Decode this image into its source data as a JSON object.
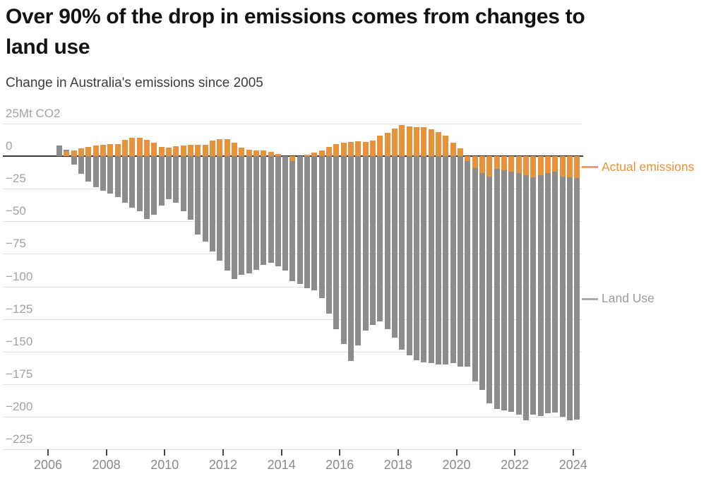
{
  "header": {
    "title_lines": [
      "Over 90% of the drop in emissions comes from changes to",
      "land use"
    ],
    "subtitle": "Change in Australia's emissions since 2005"
  },
  "chart_data": {
    "type": "bar",
    "stacked": true,
    "orientation": "vertical",
    "title": "Over 90% of the drop in emissions comes from changes to land use",
    "subtitle": "Change in Australia's emissions since 2005",
    "unit": "Mt CO2",
    "ylim": [
      -225,
      25
    ],
    "grid": true,
    "legend_position": "right",
    "y_axis": {
      "tick_values": [
        25,
        0,
        -25,
        -50,
        -75,
        -100,
        -125,
        -150,
        -175,
        -200,
        -225
      ],
      "tick_labels": [
        "25Mt CO2",
        "0",
        "−25",
        "−50",
        "−75",
        "−100",
        "−125",
        "−150",
        "−175",
        "−200",
        "−225"
      ]
    },
    "x_axis": {
      "tick_years": [
        2006,
        2008,
        2010,
        2012,
        2014,
        2016,
        2018,
        2020,
        2022,
        2024
      ]
    },
    "categories": [
      "Jun 2006",
      "Sep 2006",
      "Dec 2006",
      "Mar 2007",
      "Jun 2007",
      "Sep 2007",
      "Dec 2007",
      "Mar 2008",
      "Jun 2008",
      "Sep 2008",
      "Dec 2008",
      "Mar 2009",
      "Jun 2009",
      "Sep 2009",
      "Dec 2009",
      "Mar 2010",
      "Jun 2010",
      "Sep 2010",
      "Dec 2010",
      "Mar 2011",
      "Jun 2011",
      "Sep 2011",
      "Dec 2011",
      "Mar 2012",
      "Jun 2012",
      "Sep 2012",
      "Dec 2012",
      "Mar 2013",
      "Jun 2013",
      "Sep 2013",
      "Dec 2013",
      "Mar 2014",
      "Jun 2014",
      "Sep 2014",
      "Dec 2014",
      "Mar 2015",
      "Jun 2015",
      "Sep 2015",
      "Dec 2015",
      "Mar 2016",
      "Jun 2016",
      "Sep 2016",
      "Dec 2016",
      "Mar 2017",
      "Jun 2017",
      "Sep 2017",
      "Dec 2017",
      "Mar 2018",
      "Jun 2018",
      "Sep 2018",
      "Dec 2018",
      "Mar 2019",
      "Jun 2019",
      "Sep 2019",
      "Dec 2019",
      "Mar 2020",
      "Jun 2020",
      "Sep 2020",
      "Dec 2020",
      "Mar 2021",
      "Jun 2021",
      "Sep 2021",
      "Dec 2021",
      "Mar 2022",
      "Jun 2022",
      "Sep 2022",
      "Dec 2022",
      "Mar 2023",
      "Jun 2023",
      "Sep 2023",
      "Dec 2023",
      "Mar 2024"
    ],
    "series": [
      {
        "name": "Actual emissions",
        "color": "#E8933C",
        "values": [
          0,
          4,
          4.5,
          6,
          7,
          8,
          8.5,
          9,
          9.5,
          12.5,
          14,
          14,
          12.5,
          10.5,
          7,
          6.5,
          7.5,
          8,
          8.5,
          8.5,
          8.5,
          12,
          13,
          13,
          10.5,
          6.5,
          5,
          4.5,
          4.5,
          3.5,
          1.5,
          0,
          -3.5,
          0,
          1,
          2.5,
          4.5,
          7,
          9.5,
          10.5,
          11,
          11.5,
          11,
          12,
          15.5,
          18,
          21,
          24,
          23,
          22,
          22.5,
          20.5,
          18.5,
          16,
          10.5,
          6,
          -3.5,
          -9,
          -13,
          -15.5,
          -10,
          -11,
          -12,
          -13,
          -14.5,
          -16,
          -14.5,
          -13,
          -12,
          -15.5,
          -16.5,
          -17
        ]
      },
      {
        "name": "Land Use",
        "color": "#8C8C8C",
        "values": [
          8,
          1,
          -6.5,
          -13.5,
          -19.5,
          -24,
          -26.5,
          -28.5,
          -31.5,
          -35.5,
          -39.5,
          -42,
          -48,
          -45,
          -38,
          -33,
          -36,
          -42,
          -48.5,
          -60,
          -65.5,
          -73,
          -80,
          -88,
          -94.5,
          -91,
          -90,
          -87,
          -83.5,
          -82,
          -84.5,
          -88,
          -92.5,
          -98,
          -101.5,
          -103,
          -109,
          -121,
          -133,
          -144,
          -157,
          -145,
          -134,
          -129.5,
          -127,
          -133,
          -139.5,
          -148.5,
          -153,
          -156.5,
          -158.5,
          -159,
          -160,
          -160,
          -159,
          -161.5,
          -158,
          -164,
          -166.5,
          -174,
          -184,
          -184,
          -184,
          -185.5,
          -188,
          -182.5,
          -185,
          -184.5,
          -185,
          -184.5,
          -186,
          -185
        ]
      }
    ],
    "legend": {
      "entries": [
        {
          "label": "Actual emissions",
          "color": "#E8923A"
        },
        {
          "label": "Land Use",
          "color": "#9d9d9d"
        }
      ]
    }
  },
  "colors": {
    "actual_emissions": "#E8933C",
    "land_use": "#8C8C8C",
    "zero_line": "#3a3a3a",
    "gridline": "#e2e2e2",
    "axis_text": "#a2a2a2"
  }
}
